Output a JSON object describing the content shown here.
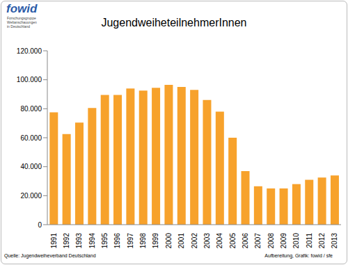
{
  "chart_data": {
    "type": "bar",
    "title": "JugendweiheteilnehmerInnen",
    "categories": [
      "1991",
      "1992",
      "1993",
      "1994",
      "1995",
      "1996",
      "1997",
      "1998",
      "1999",
      "2000",
      "2001",
      "2002",
      "2003",
      "2004",
      "2005",
      "2006",
      "2007",
      "2008",
      "2009",
      "2010",
      "2011",
      "2012",
      "2013"
    ],
    "values": [
      77500,
      62500,
      70500,
      80500,
      89500,
      89500,
      94000,
      92500,
      94500,
      96500,
      95000,
      93000,
      86000,
      78000,
      60000,
      37000,
      26500,
      25000,
      25000,
      28000,
      31000,
      32500,
      34000
    ],
    "color": "#f7a22c",
    "ylim": [
      0,
      120000
    ],
    "yticks": [
      0,
      {
        "value": 20000,
        "label": "20.000"
      },
      {
        "value": 40000,
        "label": "40.000"
      },
      {
        "value": 60000,
        "label": "60.000"
      },
      {
        "value": 80000,
        "label": "80.000"
      },
      {
        "value": 100000,
        "label": "100.000"
      },
      {
        "value": 120000,
        "label": "120.000"
      }
    ],
    "grid": false,
    "annotations": [
      "fowid",
      "Forschungsgruppe",
      "Weltanschauungen",
      "in Deutschland",
      "Quelle: Jugendweiheverband Deutschland",
      "Aufbereitung, Grafik:  fowid / sfe"
    ]
  }
}
